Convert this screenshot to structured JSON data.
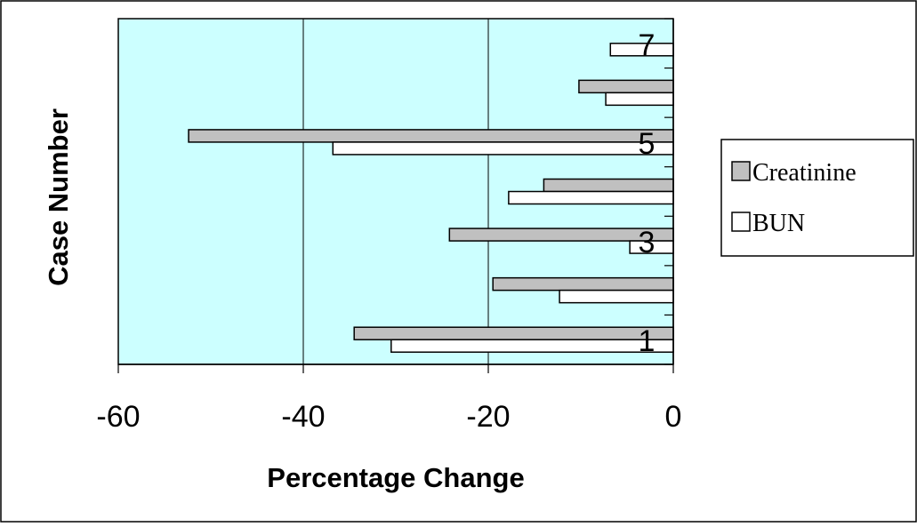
{
  "chart_data": {
    "type": "bar",
    "orientation": "horizontal",
    "categories": [
      "1",
      "2",
      "3",
      "4",
      "5",
      "6",
      "7"
    ],
    "category_tick_labels": [
      "1",
      "3",
      "5",
      "7"
    ],
    "series": [
      {
        "name": "Creatinine",
        "values": [
          -34.5,
          -19.5,
          -24.2,
          -14.0,
          -52.4,
          -10.2,
          null
        ]
      },
      {
        "name": "BUN",
        "values": [
          -30.5,
          -12.3,
          -4.7,
          -17.8,
          -36.8,
          -7.3,
          -6.8
        ]
      }
    ],
    "xlabel": "Percentage Change",
    "ylabel": "Case Number",
    "xlim": [
      -60,
      0
    ],
    "xticks": [
      -60,
      -40,
      -20,
      0
    ],
    "xtick_labels": [
      "-60",
      "-40",
      "-20",
      "0"
    ],
    "grid": true,
    "legend_position": "right",
    "colors": {
      "plot_background": "#ccffff",
      "Creatinine": "#c0c0c0",
      "BUN": "#ffffff",
      "bar_outline": "#000000",
      "gridline": "#000000"
    }
  }
}
